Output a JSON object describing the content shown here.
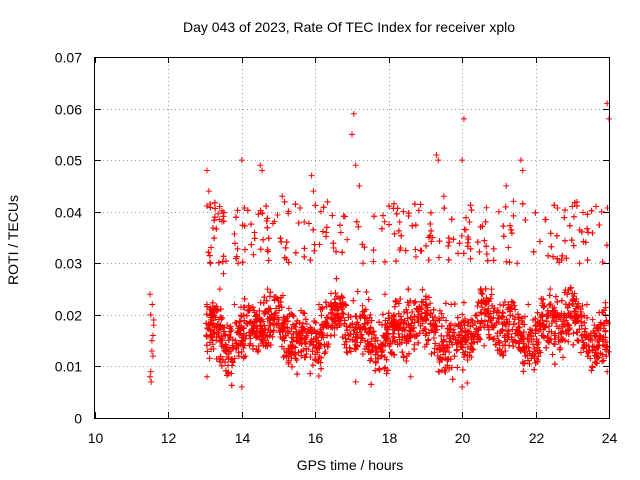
{
  "chart_data": {
    "type": "scatter",
    "title": "Day 043 of 2023, Rate Of TEC Index for receiver xplo",
    "xlabel": "GPS time / hours",
    "ylabel": "ROTI / TECUs",
    "xlim": [
      10,
      24
    ],
    "ylim": [
      0,
      0.07
    ],
    "xticks": [
      10,
      12,
      14,
      16,
      18,
      20,
      22,
      24
    ],
    "xtick_labels": [
      "10",
      "12",
      "14",
      "16",
      "18",
      "20",
      "22",
      "24"
    ],
    "yticks": [
      0,
      0.01,
      0.02,
      0.03,
      0.04,
      0.05,
      0.06,
      0.07
    ],
    "ytick_labels": [
      "0",
      "0.01",
      "0.02",
      "0.03",
      "0.04",
      "0.05",
      "0.06",
      "0.07"
    ],
    "grid": true,
    "marker": "+",
    "color": "#ff0000",
    "series": [
      {
        "name": "ROTI",
        "x": [
          11.5,
          11.52,
          11.55,
          11.58,
          11.6,
          11.5,
          11.53,
          11.56,
          11.6,
          11.55,
          11.52,
          11.58,
          13.05,
          13.1,
          13.15,
          13.2,
          13.3,
          13.4,
          13.5,
          13.6,
          13.7,
          13.8,
          13.9,
          14.0,
          14.05,
          14.1,
          14.2,
          14.3,
          14.5,
          14.55,
          14.7,
          14.9,
          15.1,
          15.3,
          15.5,
          15.7,
          15.9,
          15.95,
          16.1,
          16.3,
          16.5,
          16.7,
          16.9,
          17.0,
          17.05,
          17.1,
          17.2,
          17.3,
          17.5,
          17.7,
          17.9,
          18.1,
          18.3,
          18.5,
          18.6,
          18.8,
          19.0,
          19.2,
          19.3,
          19.35,
          19.5,
          19.7,
          19.9,
          20.0,
          20.05,
          20.2,
          20.4,
          20.6,
          20.8,
          21.0,
          21.2,
          21.4,
          21.5,
          21.6,
          21.65,
          21.8,
          22.0,
          22.2,
          22.4,
          22.6,
          22.8,
          23.0,
          23.2,
          23.4,
          23.6,
          23.8,
          23.9,
          23.95,
          24.0,
          13.05,
          14.0,
          17.1,
          20.0,
          23.95
        ],
        "y": [
          0.024,
          0.02,
          0.015,
          0.012,
          0.018,
          0.008,
          0.007,
          0.022,
          0.019,
          0.013,
          0.009,
          0.016,
          0.048,
          0.044,
          0.03,
          0.02,
          0.015,
          0.025,
          0.028,
          0.018,
          0.013,
          0.022,
          0.03,
          0.05,
          0.02,
          0.012,
          0.016,
          0.014,
          0.049,
          0.048,
          0.025,
          0.018,
          0.043,
          0.02,
          0.015,
          0.038,
          0.047,
          0.044,
          0.022,
          0.036,
          0.033,
          0.018,
          0.02,
          0.055,
          0.059,
          0.049,
          0.045,
          0.03,
          0.02,
          0.015,
          0.024,
          0.018,
          0.038,
          0.012,
          0.008,
          0.02,
          0.016,
          0.035,
          0.051,
          0.05,
          0.043,
          0.022,
          0.018,
          0.05,
          0.058,
          0.038,
          0.02,
          0.014,
          0.025,
          0.04,
          0.045,
          0.042,
          0.03,
          0.05,
          0.048,
          0.022,
          0.018,
          0.016,
          0.025,
          0.02,
          0.015,
          0.041,
          0.03,
          0.022,
          0.018,
          0.04,
          0.02,
          0.061,
          0.058,
          0.008,
          0.006,
          0.007,
          0.006,
          0.009
        ],
        "density_band": {
          "x_start": 13.0,
          "x_end": 24.0,
          "typical_low": 0.008,
          "typical_high": 0.03,
          "center": 0.017
        }
      }
    ]
  }
}
